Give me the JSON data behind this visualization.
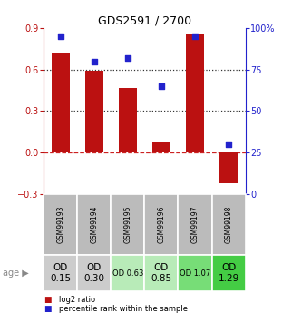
{
  "title": "GDS2591 / 2700",
  "samples": [
    "GSM99193",
    "GSM99194",
    "GSM99195",
    "GSM99196",
    "GSM99197",
    "GSM99198"
  ],
  "log2_ratio": [
    0.72,
    0.59,
    0.47,
    0.08,
    0.86,
    -0.22
  ],
  "percentile_rank": [
    95,
    80,
    82,
    65,
    95,
    30
  ],
  "bar_color": "#bb1111",
  "dot_color": "#2222cc",
  "ylim_left": [
    -0.3,
    0.9
  ],
  "ylim_right": [
    0,
    100
  ],
  "yticks_left": [
    -0.3,
    0.0,
    0.3,
    0.6,
    0.9
  ],
  "yticks_right": [
    0,
    25,
    50,
    75,
    100
  ],
  "hlines": [
    0.0,
    0.3,
    0.6
  ],
  "hline_styles": [
    "--",
    ":",
    ":"
  ],
  "hline_colors": [
    "#cc2222",
    "#333333",
    "#333333"
  ],
  "age_labels": [
    "OD\n0.15",
    "OD\n0.30",
    "OD 0.63",
    "OD\n0.85",
    "OD 1.07",
    "OD\n1.29"
  ],
  "age_label_big": [
    true,
    true,
    false,
    true,
    false,
    true
  ],
  "cell_bg_colors": [
    "#cccccc",
    "#cccccc",
    "#b8ebb8",
    "#b8ebb8",
    "#77dd77",
    "#44cc44"
  ],
  "gsm_cell_bg": "#bbbbbb",
  "legend_items": [
    "log2 ratio",
    "percentile rank within the sample"
  ],
  "legend_colors": [
    "#bb1111",
    "#2222cc"
  ]
}
